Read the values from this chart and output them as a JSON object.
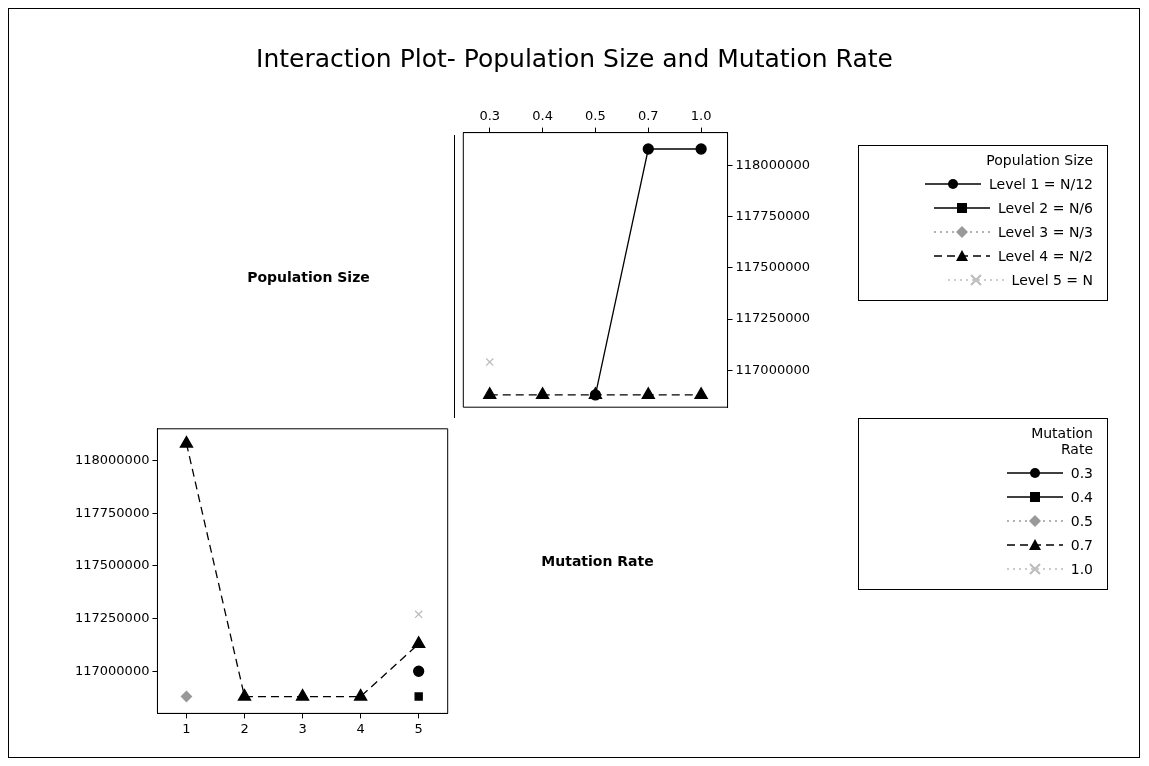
{
  "chart_data": [
    {
      "type": "other",
      "title": "Interaction Plot- Population Size and Mutation Rate",
      "annotations": [
        "Population Size"
      ]
    },
    {
      "type": "line",
      "categories": [
        "0.3",
        "0.4",
        "0.5",
        "0.7",
        "1.0"
      ],
      "ylim": [
        116820000,
        118160000
      ],
      "yticks": [
        117000000,
        117250000,
        117500000,
        117750000,
        118000000
      ],
      "grid": false,
      "legend": "right",
      "legend_title": "Population Size",
      "series": [
        {
          "name": "Level 1 = N/12",
          "color": "#000000",
          "marker": "circle",
          "line_style": "solid",
          "values": [
            null,
            null,
            116880000,
            118080000,
            118080000
          ]
        },
        {
          "name": "Level 2 = N/6",
          "color": "#000000",
          "marker": "square",
          "line_style": "solid",
          "values": [
            null,
            null,
            null,
            null,
            null
          ]
        },
        {
          "name": "Level 3 = N/3",
          "color": "#999999",
          "marker": "diamond",
          "line_style": "dotted",
          "values": [
            null,
            null,
            null,
            null,
            null
          ]
        },
        {
          "name": "Level 4 = N/2",
          "color": "#000000",
          "marker": "triangle",
          "line_style": "dashed",
          "values": [
            116880000,
            116880000,
            116880000,
            116880000,
            116880000
          ]
        },
        {
          "name": "Level 5 = N",
          "color": "#bbbbbb",
          "marker": "cross",
          "line_style": "dotted",
          "values": [
            117040000,
            null,
            null,
            null,
            null
          ]
        }
      ]
    },
    {
      "type": "line",
      "categories": [
        "1",
        "2",
        "3",
        "4",
        "5"
      ],
      "ylim": [
        116800000,
        118150000
      ],
      "yticks": [
        117000000,
        117250000,
        117500000,
        117750000,
        118000000
      ],
      "grid": false,
      "legend": "right",
      "legend_title": "Mutation Rate",
      "series": [
        {
          "name": "0.3",
          "color": "#000000",
          "marker": "circle",
          "line_style": "solid",
          "values": [
            null,
            null,
            null,
            null,
            117000000
          ]
        },
        {
          "name": "0.4",
          "color": "#000000",
          "marker": "square",
          "line_style": "solid",
          "values": [
            null,
            null,
            null,
            null,
            116880000
          ]
        },
        {
          "name": "0.5",
          "color": "#999999",
          "marker": "diamond",
          "line_style": "dotted",
          "values": [
            116880000,
            null,
            null,
            null,
            null
          ]
        },
        {
          "name": "0.7",
          "color": "#000000",
          "marker": "triangle",
          "line_style": "dashed",
          "values": [
            118080000,
            116880000,
            116880000,
            116880000,
            117130000
          ]
        },
        {
          "name": "1.0",
          "color": "#bbbbbb",
          "marker": "cross",
          "line_style": "dotted",
          "values": [
            null,
            null,
            null,
            null,
            117270000
          ]
        }
      ]
    },
    {
      "type": "other",
      "annotations": [
        "Mutation Rate"
      ]
    }
  ]
}
